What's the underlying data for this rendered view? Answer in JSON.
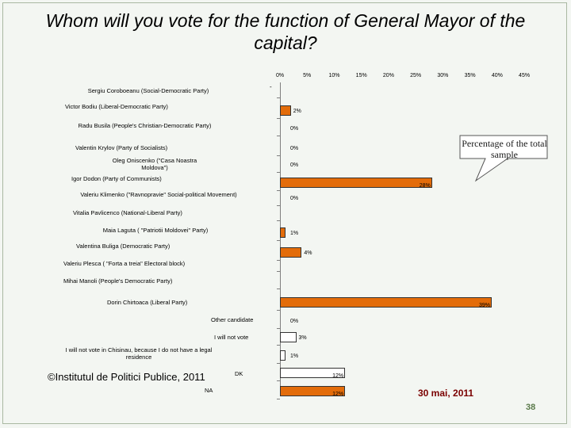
{
  "slide": {
    "title": "Whom will you vote for the function of General Mayor of the capital?",
    "callout": "Percentage of the total sample",
    "source": "©Institutul de Politici Publice, 2011",
    "date": "30 mai, 2011",
    "page_number": "38",
    "colors": {
      "bar_orange": "#e36c0a",
      "bar_white": "#ffffff",
      "date_color": "#7a0000"
    }
  },
  "chart_data": {
    "type": "bar",
    "orientation": "horizontal",
    "xlim": [
      0,
      45
    ],
    "x_ticks": [
      "0%",
      "5%",
      "10%",
      "15%",
      "20%",
      "25%",
      "30%",
      "35%",
      "40%",
      "45%"
    ],
    "categories": [
      "Sergiu Coroboeanu (Social-Democratic Party)",
      "Victor Bodiu (Liberal-Democratic Party)",
      "Radu Busila (People's Christian-Democratic Party)",
      "Valentin Krylov (Party of Socialists)",
      "Oleg Oniscenko (\"Casa Noastra Moldova\")",
      "Igor Dodon (Party of Communists)",
      "Valeriu Klimenko (\"Ravnopravie\" Social-political Movement)",
      "Vitalia Pavlicenco (National-Liberal Party)",
      "Maia Laguta ( \"Patriotii Moldovei\" Party)",
      "Valentina Buliga (Democratic Party)",
      "Valeriu Plesca ( \"Forta a treia\" Electoral block)",
      "Mihai Manoli (People's Democratic Party)",
      "Dorin Chirtoaca (Liberal Party)",
      "Other candidate",
      "I will not vote",
      "I will not vote in Chisinau, because I do not have a legal residence",
      "DK",
      "NA"
    ],
    "values": [
      null,
      2,
      0,
      0,
      0,
      28,
      0,
      null,
      1,
      4,
      null,
      null,
      39,
      0,
      3,
      1,
      12,
      12
    ],
    "labels": [
      "-",
      "2%",
      "0%",
      "0%",
      "0%",
      "28%",
      "0%",
      "",
      "1%",
      "4%",
      "",
      "",
      "39%",
      "0%",
      "3%",
      "1%",
      "12%",
      "12%"
    ],
    "bar_colors": [
      "none",
      "orange",
      "none",
      "none",
      "none",
      "orange",
      "none",
      "none",
      "orange",
      "orange",
      "none",
      "none",
      "orange",
      "none",
      "white",
      "white",
      "white",
      "orange"
    ]
  }
}
